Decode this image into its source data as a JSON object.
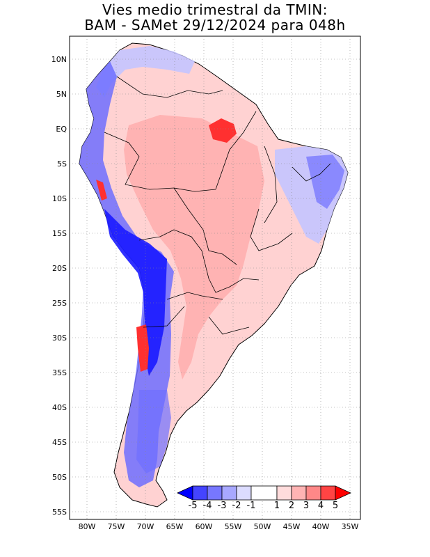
{
  "title": {
    "line1": "Vies medio trimestral da TMIN:",
    "line2": "BAM - SAMet 29/12/2024  para 048h"
  },
  "axes": {
    "lon_labels": [
      "80W",
      "75W",
      "70W",
      "65W",
      "60W",
      "55W",
      "50W",
      "45W",
      "40W",
      "35W"
    ],
    "lat_labels": [
      "10N",
      "5N",
      "EQ",
      "5S",
      "10S",
      "15S",
      "20S",
      "25S",
      "30S",
      "35S",
      "40S",
      "45S",
      "50S",
      "55S"
    ]
  },
  "colorbar": {
    "labels": [
      "-5",
      "-4",
      "-3",
      "-2",
      "-1",
      "1",
      "2",
      "3",
      "4",
      "5"
    ],
    "colors": [
      "#0000ff",
      "#4444ff",
      "#7777ff",
      "#a8a8ff",
      "#dcdcff",
      "#ffffff",
      "#ffdcdc",
      "#ffb4b4",
      "#ff8888",
      "#ff4444",
      "#ff0000"
    ]
  },
  "colors": {
    "strong_blue": "#1a1aff",
    "mid_blue": "#6f6fff",
    "light_blue": "#c4c4ff",
    "pale_red": "#ffd2d2",
    "mid_red": "#ffa8a8",
    "strong_red": "#ff3030",
    "coast": "#000000"
  }
}
